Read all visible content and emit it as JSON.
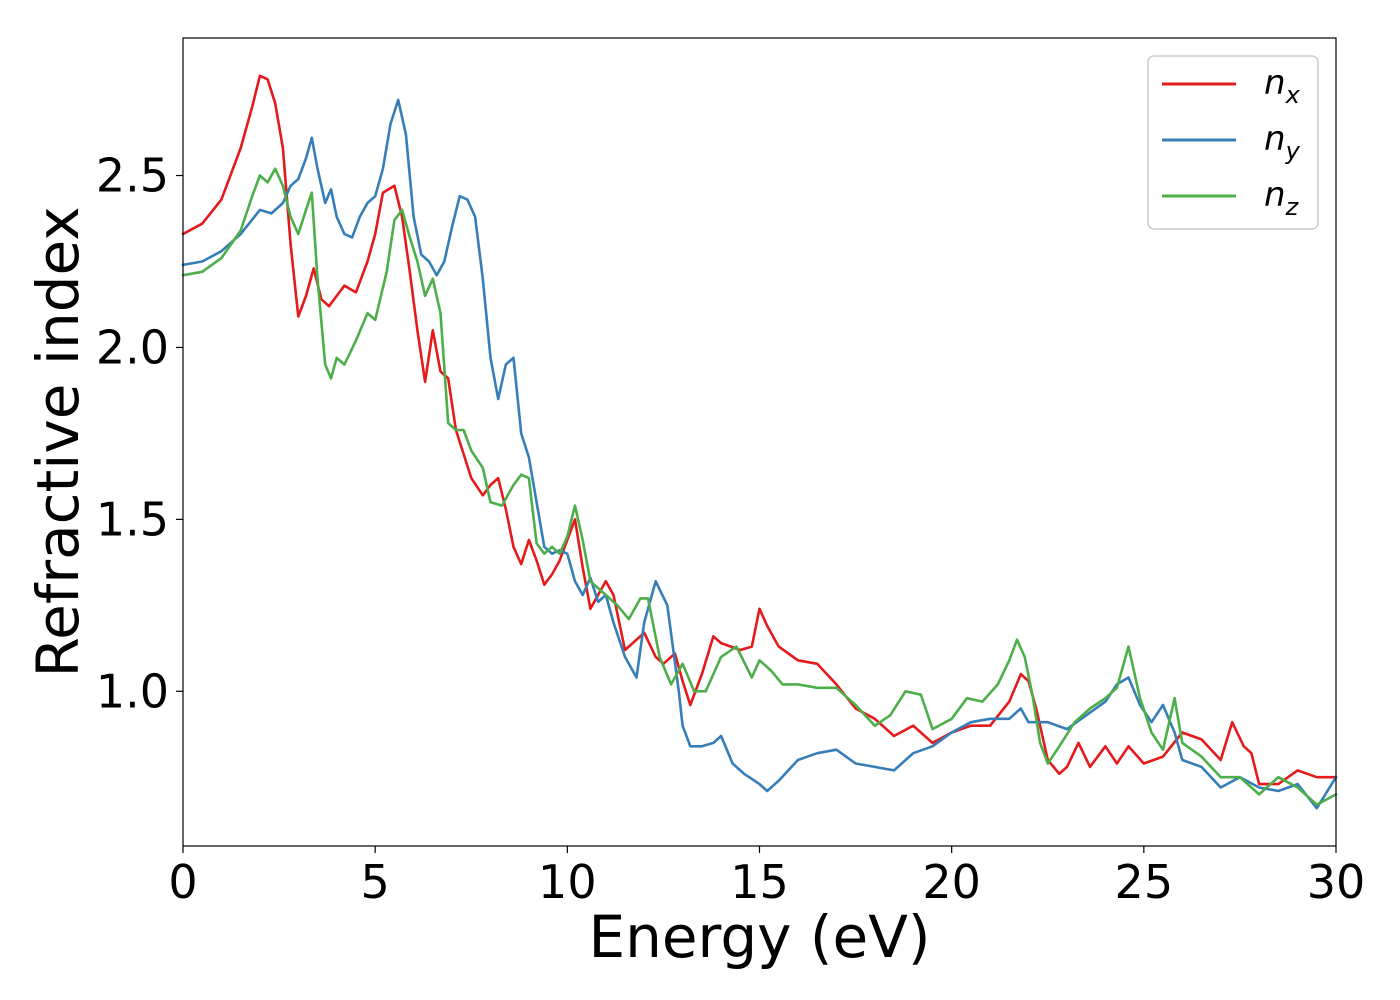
{
  "chart_data": {
    "type": "line",
    "title": "",
    "xlabel": "Energy (eV)",
    "ylabel": "Refractive index",
    "xlim": [
      0,
      30
    ],
    "ylim": [
      0.55,
      2.9
    ],
    "x_ticks": [
      "0",
      "5",
      "10",
      "15",
      "20",
      "25",
      "30"
    ],
    "y_ticks": [
      "1.0",
      "1.5",
      "2.0",
      "2.5"
    ],
    "grid": false,
    "legend_position": "top-right",
    "series": [
      {
        "name": "n",
        "subscript": "x",
        "color": "#e41a1c",
        "x": [
          0,
          0.5,
          1.0,
          1.5,
          1.8,
          2.0,
          2.2,
          2.4,
          2.6,
          2.8,
          3.0,
          3.2,
          3.4,
          3.6,
          3.8,
          4.0,
          4.2,
          4.5,
          4.8,
          5.0,
          5.2,
          5.5,
          5.7,
          5.9,
          6.1,
          6.3,
          6.5,
          6.7,
          6.9,
          7.1,
          7.3,
          7.5,
          7.8,
          8.0,
          8.2,
          8.4,
          8.6,
          8.8,
          9.0,
          9.2,
          9.4,
          9.6,
          9.8,
          10.0,
          10.2,
          10.4,
          10.6,
          10.8,
          11.0,
          11.2,
          11.5,
          11.8,
          12.0,
          12.3,
          12.5,
          12.8,
          13.0,
          13.2,
          13.5,
          13.8,
          14.0,
          14.5,
          14.8,
          15.0,
          15.2,
          15.5,
          16.0,
          16.5,
          17.0,
          17.5,
          18.0,
          18.5,
          19.0,
          19.5,
          20.0,
          20.5,
          21.0,
          21.5,
          21.8,
          22.0,
          22.2,
          22.5,
          22.8,
          23.0,
          23.3,
          23.6,
          24.0,
          24.3,
          24.6,
          25.0,
          25.5,
          26.0,
          26.5,
          27.0,
          27.3,
          27.6,
          27.8,
          28.0,
          28.5,
          29.0,
          29.5,
          30.0
        ],
        "y": [
          2.33,
          2.36,
          2.43,
          2.58,
          2.7,
          2.79,
          2.78,
          2.71,
          2.58,
          2.3,
          2.09,
          2.15,
          2.23,
          2.14,
          2.12,
          2.15,
          2.18,
          2.16,
          2.25,
          2.33,
          2.45,
          2.47,
          2.38,
          2.22,
          2.05,
          1.9,
          2.05,
          1.93,
          1.91,
          1.76,
          1.69,
          1.62,
          1.57,
          1.6,
          1.62,
          1.53,
          1.42,
          1.37,
          1.44,
          1.38,
          1.31,
          1.34,
          1.38,
          1.44,
          1.5,
          1.36,
          1.24,
          1.28,
          1.32,
          1.28,
          1.12,
          1.15,
          1.17,
          1.1,
          1.08,
          1.11,
          1.03,
          0.96,
          1.05,
          1.16,
          1.14,
          1.12,
          1.13,
          1.24,
          1.19,
          1.13,
          1.09,
          1.08,
          1.02,
          0.95,
          0.92,
          0.87,
          0.9,
          0.85,
          0.88,
          0.9,
          0.9,
          0.97,
          1.05,
          1.03,
          0.95,
          0.8,
          0.76,
          0.78,
          0.85,
          0.78,
          0.84,
          0.79,
          0.84,
          0.79,
          0.81,
          0.88,
          0.86,
          0.8,
          0.91,
          0.84,
          0.82,
          0.73,
          0.73,
          0.77,
          0.75,
          0.75
        ]
      },
      {
        "name": "n",
        "subscript": "y",
        "color": "#377eb8",
        "x": [
          0,
          0.5,
          1.0,
          1.5,
          2.0,
          2.3,
          2.6,
          2.8,
          3.0,
          3.2,
          3.35,
          3.5,
          3.7,
          3.85,
          4.0,
          4.2,
          4.4,
          4.6,
          4.8,
          5.0,
          5.2,
          5.4,
          5.6,
          5.8,
          6.0,
          6.2,
          6.4,
          6.6,
          6.8,
          7.0,
          7.2,
          7.4,
          7.6,
          7.8,
          8.0,
          8.2,
          8.4,
          8.6,
          8.8,
          9.0,
          9.2,
          9.4,
          9.6,
          9.8,
          10.0,
          10.2,
          10.4,
          10.6,
          10.8,
          11.0,
          11.2,
          11.5,
          11.8,
          12.0,
          12.3,
          12.6,
          12.9,
          13.0,
          13.2,
          13.5,
          13.8,
          14.0,
          14.3,
          14.6,
          15.0,
          15.2,
          15.5,
          16.0,
          16.5,
          17.0,
          17.5,
          18.0,
          18.5,
          19.0,
          19.5,
          20.0,
          20.5,
          21.0,
          21.5,
          21.8,
          22.0,
          22.5,
          23.0,
          23.5,
          24.0,
          24.3,
          24.6,
          24.9,
          25.2,
          25.5,
          25.8,
          26.0,
          26.5,
          27.0,
          27.5,
          28.0,
          28.5,
          29.0,
          29.5,
          30.0
        ],
        "y": [
          2.24,
          2.25,
          2.28,
          2.33,
          2.4,
          2.39,
          2.42,
          2.47,
          2.49,
          2.55,
          2.61,
          2.52,
          2.42,
          2.46,
          2.38,
          2.33,
          2.32,
          2.38,
          2.42,
          2.44,
          2.52,
          2.65,
          2.72,
          2.62,
          2.38,
          2.27,
          2.25,
          2.21,
          2.25,
          2.35,
          2.44,
          2.43,
          2.38,
          2.2,
          1.97,
          1.85,
          1.95,
          1.97,
          1.75,
          1.68,
          1.55,
          1.42,
          1.4,
          1.41,
          1.4,
          1.32,
          1.28,
          1.33,
          1.26,
          1.28,
          1.2,
          1.1,
          1.04,
          1.2,
          1.32,
          1.25,
          1.0,
          0.9,
          0.84,
          0.84,
          0.85,
          0.87,
          0.79,
          0.76,
          0.73,
          0.71,
          0.74,
          0.8,
          0.82,
          0.83,
          0.79,
          0.78,
          0.77,
          0.82,
          0.84,
          0.88,
          0.91,
          0.92,
          0.92,
          0.95,
          0.91,
          0.91,
          0.89,
          0.93,
          0.97,
          1.02,
          1.04,
          0.96,
          0.91,
          0.96,
          0.88,
          0.8,
          0.78,
          0.72,
          0.75,
          0.72,
          0.71,
          0.73,
          0.66,
          0.75
        ]
      },
      {
        "name": "n",
        "subscript": "z",
        "color": "#4daf4a",
        "x": [
          0,
          0.5,
          1.0,
          1.5,
          1.8,
          2.0,
          2.2,
          2.4,
          2.6,
          2.8,
          3.0,
          3.2,
          3.35,
          3.5,
          3.7,
          3.85,
          4.0,
          4.2,
          4.5,
          4.8,
          5.0,
          5.3,
          5.5,
          5.7,
          5.9,
          6.1,
          6.3,
          6.5,
          6.7,
          6.9,
          7.1,
          7.3,
          7.5,
          7.8,
          8.0,
          8.3,
          8.6,
          8.8,
          9.0,
          9.2,
          9.4,
          9.6,
          9.8,
          10.0,
          10.2,
          10.4,
          10.6,
          10.8,
          11.0,
          11.3,
          11.6,
          11.9,
          12.1,
          12.4,
          12.7,
          13.0,
          13.3,
          13.6,
          14.0,
          14.4,
          14.8,
          15.0,
          15.3,
          15.6,
          16.0,
          16.5,
          17.0,
          17.5,
          18.0,
          18.4,
          18.8,
          19.2,
          19.5,
          20.0,
          20.4,
          20.8,
          21.2,
          21.5,
          21.7,
          21.9,
          22.1,
          22.3,
          22.5,
          22.8,
          23.2,
          23.6,
          24.0,
          24.3,
          24.6,
          24.9,
          25.2,
          25.5,
          25.8,
          26.0,
          26.5,
          27.0,
          27.5,
          28.0,
          28.5,
          29.0,
          29.5,
          30.0
        ],
        "y": [
          2.21,
          2.22,
          2.26,
          2.34,
          2.44,
          2.5,
          2.48,
          2.52,
          2.47,
          2.38,
          2.33,
          2.4,
          2.45,
          2.2,
          1.95,
          1.91,
          1.97,
          1.95,
          2.02,
          2.1,
          2.08,
          2.22,
          2.37,
          2.4,
          2.32,
          2.25,
          2.15,
          2.2,
          2.1,
          1.78,
          1.76,
          1.76,
          1.7,
          1.65,
          1.55,
          1.54,
          1.6,
          1.63,
          1.62,
          1.43,
          1.4,
          1.42,
          1.4,
          1.45,
          1.54,
          1.44,
          1.32,
          1.3,
          1.28,
          1.25,
          1.21,
          1.27,
          1.27,
          1.1,
          1.02,
          1.08,
          1.0,
          1.0,
          1.1,
          1.13,
          1.04,
          1.09,
          1.06,
          1.02,
          1.02,
          1.01,
          1.01,
          0.96,
          0.9,
          0.93,
          1.0,
          0.99,
          0.89,
          0.92,
          0.98,
          0.97,
          1.02,
          1.09,
          1.15,
          1.1,
          0.99,
          0.85,
          0.79,
          0.84,
          0.91,
          0.95,
          0.98,
          1.01,
          1.13,
          0.98,
          0.88,
          0.83,
          0.98,
          0.85,
          0.81,
          0.75,
          0.75,
          0.7,
          0.75,
          0.72,
          0.67,
          0.7
        ]
      }
    ]
  }
}
